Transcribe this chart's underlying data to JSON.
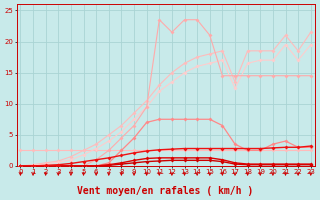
{
  "x": [
    0,
    1,
    2,
    3,
    4,
    5,
    6,
    7,
    8,
    9,
    10,
    11,
    12,
    13,
    14,
    15,
    16,
    17,
    18,
    19,
    20,
    21,
    22,
    23
  ],
  "bg_color": "#c8eaea",
  "grid_color": "#aad4d4",
  "xlabel": "Vent moyen/en rafales ( km/h )",
  "ylim": [
    0,
    26
  ],
  "xlim": [
    -0.3,
    23.3
  ],
  "yticks": [
    0,
    5,
    10,
    15,
    20,
    25
  ],
  "series": [
    {
      "color": "#ffbbbb",
      "linewidth": 0.8,
      "marker": "D",
      "markersize": 2.0,
      "y": [
        2.5,
        2.5,
        2.5,
        2.5,
        2.5,
        2.5,
        2.5,
        2.5,
        2.5,
        2.5,
        2.5,
        2.5,
        2.5,
        2.5,
        2.5,
        2.5,
        2.5,
        2.5,
        2.5,
        2.5,
        2.5,
        2.5,
        2.5,
        2.5
      ]
    },
    {
      "color": "#ffbbbb",
      "linewidth": 0.8,
      "marker": "D",
      "markersize": 2.0,
      "y": [
        0,
        0.2,
        0.5,
        0.8,
        1.5,
        2.5,
        3.5,
        5.0,
        6.5,
        8.5,
        10.5,
        13.0,
        15.0,
        16.5,
        17.5,
        18.0,
        18.5,
        13.5,
        18.5,
        18.5,
        18.5,
        21.0,
        18.5,
        21.5
      ]
    },
    {
      "color": "#ffcccc",
      "linewidth": 0.8,
      "marker": "D",
      "markersize": 2.0,
      "y": [
        0,
        0.1,
        0.3,
        0.6,
        1.0,
        1.8,
        2.8,
        4.0,
        5.5,
        7.5,
        9.5,
        12.0,
        13.5,
        15.0,
        16.0,
        16.5,
        17.0,
        12.5,
        16.5,
        17.0,
        17.0,
        19.5,
        17.0,
        19.5
      ]
    },
    {
      "color": "#ffaaaa",
      "linewidth": 0.8,
      "marker": "D",
      "markersize": 2.0,
      "y": [
        0,
        0,
        0,
        0,
        0,
        0,
        1.0,
        2.5,
        4.5,
        6.5,
        9.5,
        23.5,
        21.5,
        23.5,
        23.5,
        21.0,
        14.5,
        14.5,
        14.5,
        14.5,
        14.5,
        14.5,
        14.5,
        14.5
      ]
    },
    {
      "color": "#ff8888",
      "linewidth": 0.9,
      "marker": "D",
      "markersize": 2.0,
      "y": [
        0,
        0,
        0,
        0,
        0,
        0,
        0,
        0.5,
        2.5,
        4.5,
        7.0,
        7.5,
        7.5,
        7.5,
        7.5,
        7.5,
        6.5,
        3.5,
        2.5,
        2.5,
        3.5,
        4.0,
        3.0,
        3.0
      ]
    },
    {
      "color": "#cc0000",
      "linewidth": 1.0,
      "marker": "D",
      "markersize": 2.0,
      "y": [
        0,
        0,
        0,
        0,
        0,
        0,
        0,
        0.1,
        0.3,
        0.5,
        0.7,
        0.8,
        0.9,
        0.9,
        0.9,
        0.9,
        0.7,
        0.3,
        0.2,
        0.2,
        0.2,
        0.2,
        0.2,
        0.2
      ]
    },
    {
      "color": "#dd0000",
      "linewidth": 1.0,
      "marker": "D",
      "markersize": 2.0,
      "y": [
        0,
        0,
        0,
        0,
        0,
        0,
        0,
        0.2,
        0.5,
        0.9,
        1.2,
        1.3,
        1.3,
        1.3,
        1.3,
        1.3,
        1.0,
        0.5,
        0.3,
        0.3,
        0.3,
        0.3,
        0.3,
        0.3
      ]
    },
    {
      "color": "#ee1111",
      "linewidth": 1.0,
      "marker": "D",
      "markersize": 2.0,
      "y": [
        0,
        0,
        0.1,
        0.2,
        0.4,
        0.7,
        1.0,
        1.3,
        1.7,
        2.1,
        2.4,
        2.6,
        2.7,
        2.8,
        2.8,
        2.8,
        2.8,
        2.8,
        2.8,
        2.8,
        2.9,
        3.0,
        3.0,
        3.2
      ]
    }
  ],
  "arrow_color": "#cc0000",
  "tick_color": "#cc0000",
  "tick_fontsize": 5,
  "xlabel_fontsize": 7,
  "spine_color": "#cc0000"
}
